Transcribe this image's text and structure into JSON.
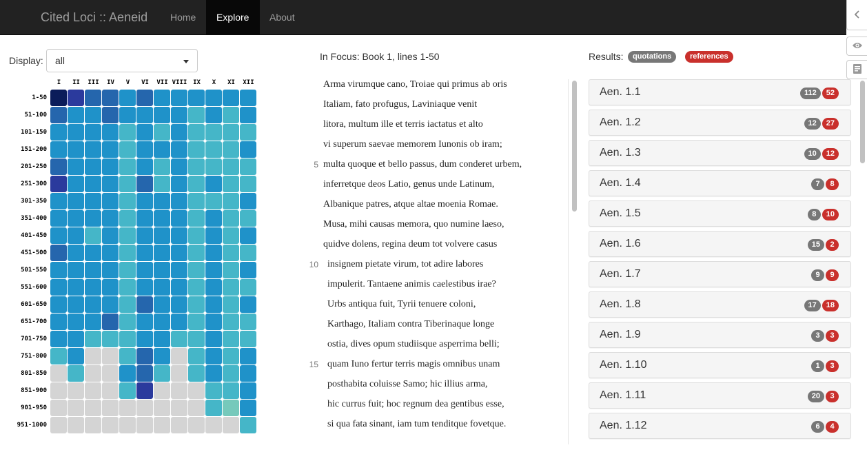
{
  "navbar": {
    "brand": "Cited Loci :: Aeneid",
    "links": [
      "Home",
      "Explore",
      "About"
    ],
    "active": "Explore"
  },
  "display": {
    "label": "Display:",
    "value": "all"
  },
  "heatmap": {
    "columns": [
      "I",
      "II",
      "III",
      "IV",
      "V",
      "VI",
      "VII",
      "VIII",
      "IX",
      "X",
      "XI",
      "XII"
    ],
    "rows": [
      "1-50",
      "51-100",
      "101-150",
      "151-200",
      "201-250",
      "251-300",
      "301-350",
      "351-400",
      "401-450",
      "451-500",
      "501-550",
      "551-600",
      "601-650",
      "651-700",
      "701-750",
      "751-800",
      "801-850",
      "851-900",
      "901-950",
      "951-1000"
    ],
    "levels": [
      [
        9,
        7,
        5,
        5,
        3,
        5,
        3,
        3,
        3,
        3,
        3,
        3
      ],
      [
        5,
        3,
        3,
        5,
        3,
        3,
        3,
        3,
        2,
        3,
        2,
        3
      ],
      [
        3,
        3,
        3,
        3,
        2,
        3,
        2,
        3,
        2,
        2,
        2,
        2
      ],
      [
        3,
        3,
        3,
        3,
        2,
        3,
        3,
        3,
        2,
        2,
        2,
        3
      ],
      [
        5,
        3,
        3,
        3,
        2,
        3,
        2,
        3,
        2,
        2,
        2,
        2
      ],
      [
        7,
        3,
        3,
        3,
        2,
        5,
        2,
        3,
        2,
        3,
        2,
        2
      ],
      [
        3,
        3,
        3,
        3,
        2,
        3,
        3,
        3,
        2,
        2,
        2,
        3
      ],
      [
        3,
        3,
        3,
        3,
        2,
        3,
        3,
        3,
        2,
        3,
        2,
        2
      ],
      [
        3,
        3,
        2,
        3,
        2,
        3,
        3,
        3,
        2,
        3,
        2,
        3
      ],
      [
        5,
        3,
        3,
        3,
        2,
        3,
        3,
        3,
        2,
        3,
        2,
        2
      ],
      [
        3,
        3,
        3,
        3,
        2,
        3,
        3,
        3,
        2,
        3,
        2,
        3
      ],
      [
        3,
        3,
        3,
        3,
        2,
        3,
        3,
        3,
        2,
        3,
        2,
        2
      ],
      [
        3,
        3,
        3,
        3,
        2,
        5,
        3,
        3,
        2,
        3,
        2,
        3
      ],
      [
        3,
        3,
        3,
        5,
        2,
        3,
        3,
        3,
        2,
        3,
        2,
        2
      ],
      [
        3,
        3,
        2,
        2,
        2,
        3,
        3,
        2,
        2,
        3,
        2,
        2
      ],
      [
        2,
        3,
        0,
        0,
        2,
        5,
        3,
        0,
        2,
        3,
        2,
        3
      ],
      [
        0,
        2,
        0,
        0,
        3,
        5,
        2,
        0,
        2,
        3,
        2,
        3
      ],
      [
        0,
        0,
        0,
        0,
        2,
        8,
        0,
        0,
        0,
        2,
        2,
        3
      ],
      [
        0,
        0,
        0,
        0,
        0,
        0,
        0,
        0,
        0,
        2,
        1,
        3
      ],
      [
        0,
        0,
        0,
        0,
        0,
        0,
        0,
        0,
        0,
        0,
        0,
        2
      ]
    ],
    "palette": [
      "#d4d4d4",
      "#76c9bb",
      "#45b6c8",
      "#1f92c9",
      "#1f92c9",
      "#2566ad",
      "#2566ad",
      "#2b3a9d",
      "#2b3a9d",
      "#0b1c5a"
    ]
  },
  "focus": {
    "title": "In Focus: Book 1, lines 1-50",
    "lines": [
      {
        "num": "",
        "text": "Arma virumque cano, Troiae qui primus ab oris"
      },
      {
        "num": "",
        "text": "Italiam, fato profugus, Laviniaque venit"
      },
      {
        "num": "",
        "text": "litora, multum ille et terris iactatus et alto"
      },
      {
        "num": "",
        "text": "vi superum saevae memorem Iunonis ob iram;"
      },
      {
        "num": "5",
        "text": "multa quoque et bello passus, dum conderet urbem,"
      },
      {
        "num": "",
        "text": "inferretque deos Latio, genus unde Latinum,"
      },
      {
        "num": "",
        "text": "Albanique patres, atque altae moenia Romae."
      },
      {
        "num": "",
        "text": "Musa, mihi causas memora, quo numine laeso,"
      },
      {
        "num": "",
        "text": "quidve dolens, regina deum tot volvere casus"
      },
      {
        "num": "10",
        "text": "insignem pietate virum, tot adire labores"
      },
      {
        "num": "",
        "text": "impulerit. Tantaene animis caelestibus irae?"
      },
      {
        "num": "",
        "text": "Urbs antiqua fuit, Tyrii tenuere coloni,"
      },
      {
        "num": "",
        "text": "Karthago, Italiam contra Tiberinaque longe"
      },
      {
        "num": "",
        "text": "ostia, dives opum studiisque asperrima belli;"
      },
      {
        "num": "15",
        "text": "quam Iuno fertur terris magis omnibus unam"
      },
      {
        "num": "",
        "text": "posthabita coluisse Samo; hic illius arma,"
      },
      {
        "num": "",
        "text": "hic currus fuit; hoc regnum dea gentibus esse,"
      },
      {
        "num": "",
        "text": "si qua fata sinant, iam tum tenditque fovetque."
      }
    ]
  },
  "results": {
    "label": "Results:",
    "tags": {
      "quotations": "quotations",
      "references": "references"
    },
    "items": [
      {
        "ref": "Aen. 1.1",
        "quotations": "112",
        "references": "52"
      },
      {
        "ref": "Aen. 1.2",
        "quotations": "12",
        "references": "27"
      },
      {
        "ref": "Aen. 1.3",
        "quotations": "10",
        "references": "12"
      },
      {
        "ref": "Aen. 1.4",
        "quotations": "7",
        "references": "8"
      },
      {
        "ref": "Aen. 1.5",
        "quotations": "8",
        "references": "10"
      },
      {
        "ref": "Aen. 1.6",
        "quotations": "15",
        "references": "2"
      },
      {
        "ref": "Aen. 1.7",
        "quotations": "9",
        "references": "9"
      },
      {
        "ref": "Aen. 1.8",
        "quotations": "17",
        "references": "18"
      },
      {
        "ref": "Aen. 1.9",
        "quotations": "3",
        "references": "3"
      },
      {
        "ref": "Aen. 1.10",
        "quotations": "1",
        "references": "3"
      },
      {
        "ref": "Aen. 1.11",
        "quotations": "20",
        "references": "3"
      },
      {
        "ref": "Aen. 1.12",
        "quotations": "6",
        "references": "4"
      }
    ]
  },
  "icons": {
    "collapse": "chevron-left-icon",
    "eye": "eye-icon",
    "notes": "notes-icon"
  }
}
